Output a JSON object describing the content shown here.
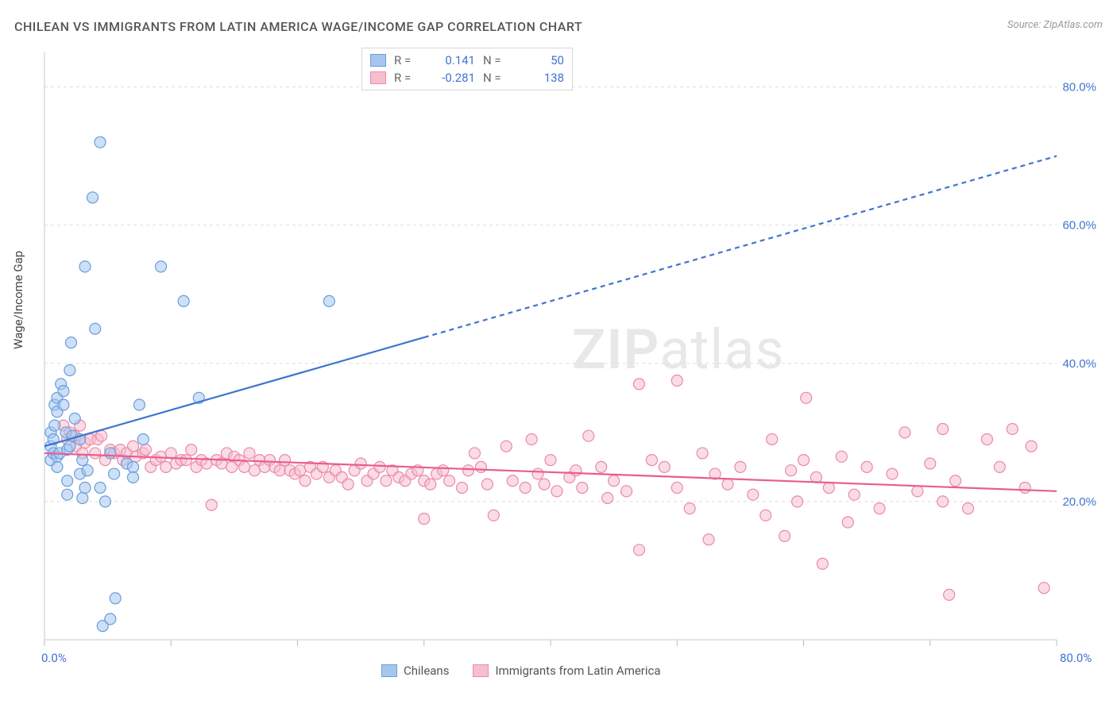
{
  "title": "CHILEAN VS IMMIGRANTS FROM LATIN AMERICA WAGE/INCOME GAP CORRELATION CHART",
  "source": "Source: ZipAtlas.com",
  "ylabel": "Wage/Income Gap",
  "watermark_bold": "ZIP",
  "watermark_rest": "atlas",
  "chart": {
    "type": "scatter",
    "xlim": [
      0,
      80
    ],
    "ylim": [
      0,
      85
    ],
    "x_tick_start": 0,
    "x_tick_step": 10,
    "y_tick_start": 20,
    "y_tick_step": 20,
    "y_tick_labels": [
      "20.0%",
      "40.0%",
      "60.0%",
      "80.0%"
    ],
    "x_origin_label": "0.0%",
    "x_end_label": "80.0%",
    "background_color": "#ffffff",
    "grid_color": "#dddddd",
    "grid_dash": "4 4",
    "axis_color": "#c8c8c8",
    "tick_color": "#bcbcbc",
    "marker_radius": 7,
    "marker_opacity": 0.55,
    "marker_stroke_width": 1.2,
    "trend_stroke_width": 2.2,
    "trend_dash": "6 5",
    "series": {
      "chileans": {
        "label": "Chileans",
        "fill": "#a6c6ee",
        "stroke": "#6a9ddd",
        "trend_color": "#3f74d1",
        "R_label": "R =",
        "R_value": "0.141",
        "N_label": "N =",
        "N_value": "50",
        "trend": {
          "x1": 0,
          "y1": 28,
          "x2": 80,
          "y2": 70,
          "solid_until_x": 30
        },
        "points": [
          [
            0.5,
            28
          ],
          [
            0.5,
            30
          ],
          [
            0.5,
            26
          ],
          [
            0.7,
            27
          ],
          [
            0.7,
            29
          ],
          [
            0.8,
            31
          ],
          [
            0.8,
            34
          ],
          [
            1.0,
            33
          ],
          [
            1.0,
            35
          ],
          [
            1.0,
            25
          ],
          [
            1.0,
            26.5
          ],
          [
            1.2,
            27
          ],
          [
            1.3,
            37
          ],
          [
            1.5,
            36
          ],
          [
            1.5,
            34
          ],
          [
            1.7,
            30
          ],
          [
            1.8,
            27.5
          ],
          [
            1.8,
            23
          ],
          [
            1.8,
            21
          ],
          [
            2.1,
            43
          ],
          [
            2.0,
            39
          ],
          [
            2.0,
            28
          ],
          [
            2.2,
            29.5
          ],
          [
            2.4,
            32
          ],
          [
            2.8,
            29
          ],
          [
            2.8,
            24
          ],
          [
            3.0,
            26
          ],
          [
            3.0,
            20.5
          ],
          [
            3.2,
            22
          ],
          [
            3.4,
            24.5
          ],
          [
            3.2,
            54
          ],
          [
            3.8,
            64
          ],
          [
            4.4,
            72
          ],
          [
            4.0,
            45
          ],
          [
            4.8,
            20
          ],
          [
            4.4,
            22
          ],
          [
            4.6,
            2
          ],
          [
            5.2,
            3
          ],
          [
            5.6,
            6
          ],
          [
            5.2,
            27
          ],
          [
            5.5,
            24
          ],
          [
            6.5,
            25.5
          ],
          [
            7.0,
            25
          ],
          [
            7.5,
            34
          ],
          [
            7.8,
            29
          ],
          [
            9.2,
            54
          ],
          [
            11.0,
            49
          ],
          [
            12.2,
            35
          ],
          [
            22.5,
            49
          ],
          [
            7.0,
            23.5
          ]
        ]
      },
      "immigrants": {
        "label": "Immigrants from Latin America",
        "fill": "#f6bfcf",
        "stroke": "#ea8aa7",
        "trend_color": "#ea5d8e",
        "R_label": "R =",
        "R_value": "-0.281",
        "N_label": "N =",
        "N_value": "138",
        "trend": {
          "x1": 0,
          "y1": 27,
          "x2": 80,
          "y2": 21.5,
          "solid_until_x": 80
        },
        "points": [
          [
            1.5,
            31
          ],
          [
            1.8,
            29
          ],
          [
            2.0,
            30
          ],
          [
            2.4,
            29.5
          ],
          [
            2.5,
            28
          ],
          [
            2.8,
            31
          ],
          [
            3.0,
            27
          ],
          [
            3.2,
            28.5
          ],
          [
            3.6,
            29
          ],
          [
            4.0,
            27
          ],
          [
            4.2,
            29
          ],
          [
            4.5,
            29.5
          ],
          [
            4.8,
            26
          ],
          [
            5.2,
            27.5
          ],
          [
            5.5,
            27
          ],
          [
            6.0,
            27.5
          ],
          [
            6.2,
            26
          ],
          [
            6.5,
            27
          ],
          [
            7.0,
            28
          ],
          [
            7.2,
            26.5
          ],
          [
            7.8,
            27
          ],
          [
            8.0,
            27.5
          ],
          [
            8.4,
            25
          ],
          [
            8.8,
            26
          ],
          [
            9.2,
            26.5
          ],
          [
            9.6,
            25
          ],
          [
            10.0,
            27
          ],
          [
            10.4,
            25.5
          ],
          [
            10.8,
            26
          ],
          [
            11.2,
            26
          ],
          [
            11.6,
            27.5
          ],
          [
            12.0,
            25
          ],
          [
            12.4,
            26
          ],
          [
            12.8,
            25.5
          ],
          [
            13.2,
            19.5
          ],
          [
            13.6,
            26
          ],
          [
            14.0,
            25.5
          ],
          [
            14.4,
            27
          ],
          [
            14.8,
            25
          ],
          [
            15.0,
            26.5
          ],
          [
            15.4,
            26
          ],
          [
            15.8,
            25
          ],
          [
            16.2,
            27
          ],
          [
            16.6,
            24.5
          ],
          [
            17.0,
            26
          ],
          [
            17.4,
            25
          ],
          [
            17.8,
            26
          ],
          [
            18.2,
            25
          ],
          [
            18.6,
            24.5
          ],
          [
            19.0,
            26
          ],
          [
            19.4,
            24.5
          ],
          [
            19.8,
            24
          ],
          [
            20.2,
            24.5
          ],
          [
            20.6,
            23
          ],
          [
            21.0,
            25
          ],
          [
            21.5,
            24
          ],
          [
            22.0,
            25
          ],
          [
            22.5,
            23.5
          ],
          [
            23.0,
            24.5
          ],
          [
            23.5,
            23.5
          ],
          [
            24.0,
            22.5
          ],
          [
            24.5,
            24.5
          ],
          [
            25.0,
            25.5
          ],
          [
            25.5,
            23
          ],
          [
            26.0,
            24
          ],
          [
            26.5,
            25
          ],
          [
            27.0,
            23
          ],
          [
            27.5,
            24.5
          ],
          [
            28.0,
            23.5
          ],
          [
            28.5,
            23
          ],
          [
            29.0,
            24
          ],
          [
            29.5,
            24.5
          ],
          [
            30.0,
            23
          ],
          [
            30.5,
            22.5
          ],
          [
            31.0,
            24
          ],
          [
            31.5,
            24.5
          ],
          [
            32.0,
            23
          ],
          [
            33.0,
            22
          ],
          [
            33.5,
            24.5
          ],
          [
            34.0,
            27
          ],
          [
            34.5,
            25
          ],
          [
            35.0,
            22.5
          ],
          [
            30.0,
            17.5
          ],
          [
            35.5,
            18
          ],
          [
            36.5,
            28
          ],
          [
            37.0,
            23
          ],
          [
            38.0,
            22
          ],
          [
            38.5,
            29
          ],
          [
            39.0,
            24
          ],
          [
            39.5,
            22.5
          ],
          [
            40.0,
            26
          ],
          [
            40.5,
            21.5
          ],
          [
            41.5,
            23.5
          ],
          [
            42.0,
            24.5
          ],
          [
            42.5,
            22
          ],
          [
            43.0,
            29.5
          ],
          [
            44.0,
            25
          ],
          [
            44.5,
            20.5
          ],
          [
            45.0,
            23
          ],
          [
            46.0,
            21.5
          ],
          [
            47.0,
            37
          ],
          [
            47.0,
            13
          ],
          [
            48.0,
            26
          ],
          [
            49.0,
            25
          ],
          [
            50.0,
            22
          ],
          [
            50.0,
            37.5
          ],
          [
            51.0,
            19
          ],
          [
            52.0,
            27
          ],
          [
            52.5,
            14.5
          ],
          [
            53.0,
            24
          ],
          [
            54,
            22.5
          ],
          [
            55,
            25
          ],
          [
            56,
            21
          ],
          [
            57,
            18
          ],
          [
            57.5,
            29
          ],
          [
            58.5,
            15
          ],
          [
            59,
            24.5
          ],
          [
            59.5,
            20
          ],
          [
            60,
            26
          ],
          [
            60.2,
            35
          ],
          [
            61,
            23.5
          ],
          [
            61.5,
            11
          ],
          [
            62,
            22
          ],
          [
            63,
            26.5
          ],
          [
            63.5,
            17
          ],
          [
            64,
            21
          ],
          [
            65,
            25
          ],
          [
            66,
            19
          ],
          [
            67,
            24
          ],
          [
            68,
            30
          ],
          [
            69,
            21.5
          ],
          [
            70,
            25.5
          ],
          [
            71,
            20
          ],
          [
            71,
            30.5
          ],
          [
            72,
            23
          ],
          [
            73,
            19
          ],
          [
            74.5,
            29
          ],
          [
            75.5,
            25
          ],
          [
            76.5,
            30.5
          ],
          [
            77.5,
            22
          ],
          [
            78,
            28
          ],
          [
            79,
            7.5
          ],
          [
            71.5,
            6.5
          ]
        ]
      }
    }
  }
}
